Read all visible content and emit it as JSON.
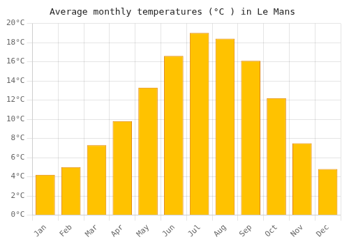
{
  "chart_data": {
    "type": "bar",
    "title": "Average monthly temperatures (°C ) in Le Mans",
    "categories": [
      "Jan",
      "Feb",
      "Mar",
      "Apr",
      "May",
      "Jun",
      "Jul",
      "Aug",
      "Sep",
      "Oct",
      "Nov",
      "Dec"
    ],
    "values": [
      4.2,
      5.0,
      7.3,
      9.8,
      13.3,
      16.6,
      19.0,
      18.4,
      16.1,
      12.2,
      7.5,
      4.8
    ],
    "color": "#FFC200",
    "ylim": [
      0,
      20
    ],
    "yticks": [
      {
        "value": 0,
        "label": "0°C"
      },
      {
        "value": 2,
        "label": "2°C"
      },
      {
        "value": 4,
        "label": "4°C"
      },
      {
        "value": 6,
        "label": "6°C"
      },
      {
        "value": 8,
        "label": "8°C"
      },
      {
        "value": 10,
        "label": "10°C"
      },
      {
        "value": 12,
        "label": "12°C"
      },
      {
        "value": 14,
        "label": "14°C"
      },
      {
        "value": 16,
        "label": "16°C"
      },
      {
        "value": 18,
        "label": "18°C"
      },
      {
        "value": 20,
        "label": "20°C"
      }
    ],
    "grid": true
  }
}
